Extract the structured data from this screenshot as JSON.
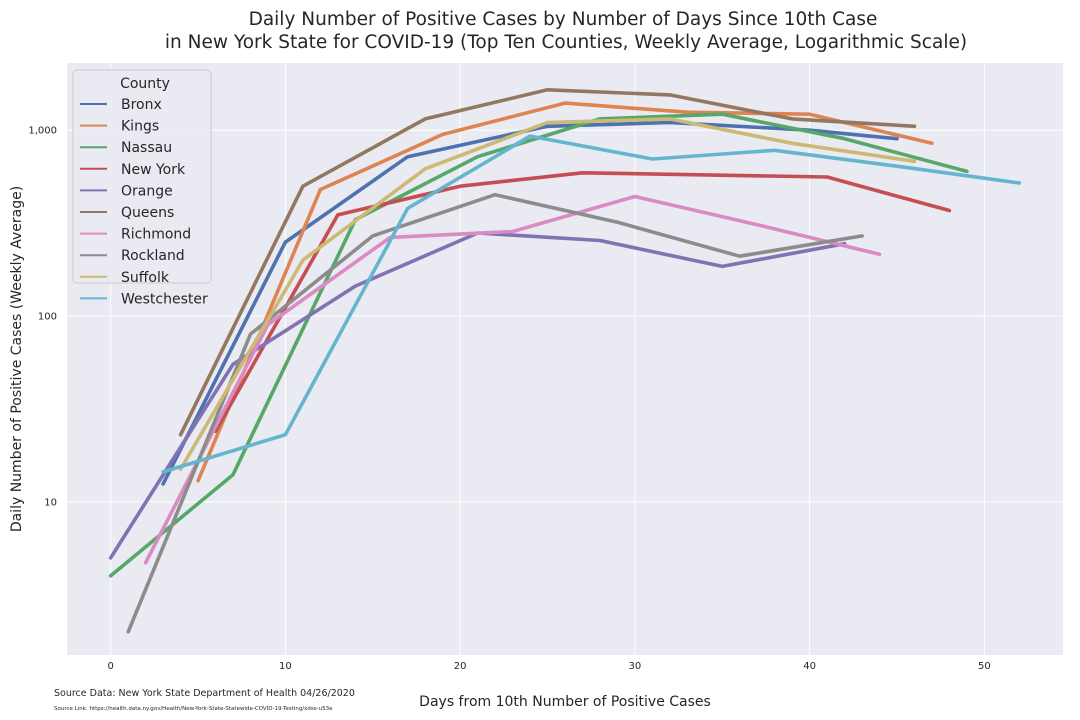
{
  "chart_data": {
    "type": "line",
    "title": [
      "Daily Number of Positive Cases by Number of Days Since 10th Case",
      "in New York State for COVID-19 (Top Ten Counties, Weekly Average, Logarithmic Scale)"
    ],
    "xlabel": "Days from 10th Number of Positive Cases",
    "ylabel": "Daily Number of Positive Cases (Weekly Average)",
    "xlim": [
      -2.5,
      54.5
    ],
    "ylim": [
      1.5,
      2300
    ],
    "yscale": "log",
    "x_ticks": [
      0,
      10,
      20,
      30,
      40,
      50
    ],
    "y_ticks": [
      {
        "value": 10,
        "label": "10"
      },
      {
        "value": 100,
        "label": "100"
      },
      {
        "value": 1000,
        "label": "1,000"
      }
    ],
    "grid": true,
    "legend": {
      "title": "County",
      "placement": "top-left"
    },
    "series": [
      {
        "name": "Bronx",
        "color": "#4c72b0",
        "points": [
          [
            3,
            12.5
          ],
          [
            10,
            250
          ],
          [
            17,
            720
          ],
          [
            25,
            1050
          ],
          [
            32,
            1100
          ],
          [
            40,
            1000
          ],
          [
            45,
            900
          ]
        ]
      },
      {
        "name": "Kings",
        "color": "#dd8452",
        "points": [
          [
            5,
            13
          ],
          [
            12,
            480
          ],
          [
            17,
            780
          ],
          [
            19,
            950
          ],
          [
            26,
            1400
          ],
          [
            33,
            1250
          ],
          [
            40,
            1220
          ],
          [
            47,
            850
          ]
        ]
      },
      {
        "name": "Nassau",
        "color": "#55a868",
        "points": [
          [
            0,
            4
          ],
          [
            7,
            14
          ],
          [
            14,
            330
          ],
          [
            21,
            720
          ],
          [
            28,
            1150
          ],
          [
            35,
            1220
          ],
          [
            42,
            900
          ],
          [
            49,
            600
          ]
        ]
      },
      {
        "name": "New York",
        "color": "#c44e52",
        "points": [
          [
            6,
            24
          ],
          [
            13,
            350
          ],
          [
            20,
            500
          ],
          [
            27,
            590
          ],
          [
            41,
            560
          ],
          [
            48,
            370
          ]
        ]
      },
      {
        "name": "Orange",
        "color": "#8172b3",
        "points": [
          [
            0,
            5
          ],
          [
            7,
            55
          ],
          [
            14,
            145
          ],
          [
            21,
            280
          ],
          [
            28,
            255
          ],
          [
            35,
            185
          ],
          [
            42,
            245
          ]
        ]
      },
      {
        "name": "Queens",
        "color": "#937860",
        "points": [
          [
            4,
            23
          ],
          [
            11,
            500
          ],
          [
            18,
            1150
          ],
          [
            25,
            1650
          ],
          [
            32,
            1550
          ],
          [
            39,
            1150
          ],
          [
            46,
            1050
          ]
        ]
      },
      {
        "name": "Richmond",
        "color": "#da8bc3",
        "points": [
          [
            2,
            4.7
          ],
          [
            9,
            90
          ],
          [
            16,
            265
          ],
          [
            23,
            285
          ],
          [
            30,
            440
          ],
          [
            37,
            310
          ],
          [
            44,
            215
          ]
        ]
      },
      {
        "name": "Rockland",
        "color": "#8c8c8c",
        "points": [
          [
            1,
            2
          ],
          [
            8,
            80
          ],
          [
            15,
            270
          ],
          [
            22,
            450
          ],
          [
            29,
            320
          ],
          [
            36,
            210
          ],
          [
            43,
            270
          ]
        ]
      },
      {
        "name": "Suffolk",
        "color": "#ccb974",
        "points": [
          [
            4,
            15
          ],
          [
            11,
            200
          ],
          [
            18,
            620
          ],
          [
            25,
            1100
          ],
          [
            32,
            1150
          ],
          [
            39,
            850
          ],
          [
            46,
            680
          ]
        ]
      },
      {
        "name": "Westchester",
        "color": "#64b5cd",
        "points": [
          [
            3,
            14.5
          ],
          [
            10,
            23
          ],
          [
            17,
            380
          ],
          [
            24,
            930
          ],
          [
            31,
            700
          ],
          [
            38,
            780
          ],
          [
            45,
            640
          ],
          [
            52,
            520
          ]
        ]
      }
    ]
  },
  "footnotes": {
    "source_data": "Source Data: New York State Department of Health 04/26/2020",
    "source_link": "Source Link: https://health.data.ny.gov/Health/New-York-State-Statewide-COVID-19-Testing/xdss-u53e"
  }
}
